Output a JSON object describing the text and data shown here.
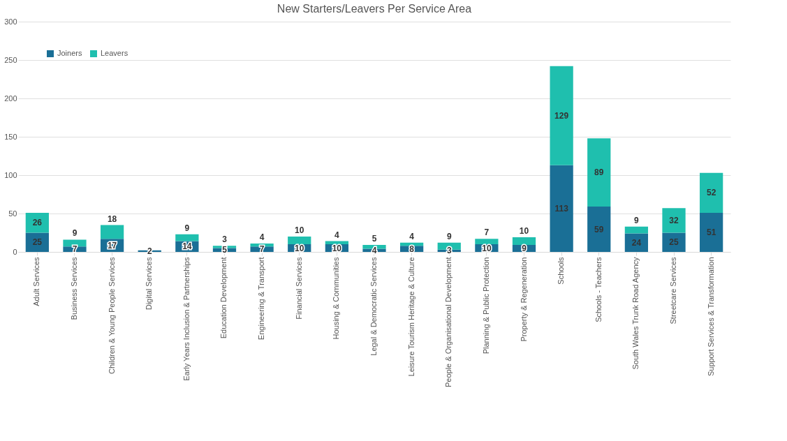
{
  "chart_data": {
    "type": "bar",
    "title": "New Starters/Leavers Per Service Area",
    "categories": [
      "Adult Services",
      "Business Services",
      "Children & Young People Services",
      "Digital Services",
      "Early Years Inclusion & Partnerships",
      "Education Development",
      "Engineering & Transport",
      "Financial Services",
      "Housing & Communities",
      "Legal & Democratic Services",
      "Leisure Tourism Heritage & Culture",
      "People & Organisational Development",
      "Planning & Public Protection",
      "Property & Regeneration",
      "Schools",
      "Schools - Teachers",
      "South Wales Trunk Road Agency",
      "Streetcare Services",
      "Support Services & Transformation"
    ],
    "series": [
      {
        "name": "Joiners",
        "color": "#1a6f96",
        "values": [
          25,
          7,
          17,
          2,
          14,
          5,
          7,
          10,
          10,
          4,
          8,
          3,
          10,
          9,
          113,
          59,
          24,
          25,
          51
        ]
      },
      {
        "name": "Leavers",
        "color": "#1fbfae",
        "values": [
          26,
          9,
          18,
          null,
          9,
          3,
          4,
          10,
          4,
          5,
          4,
          9,
          7,
          10,
          129,
          89,
          9,
          32,
          52
        ]
      }
    ],
    "stacked": true,
    "data_labels": true,
    "ylim": [
      0,
      300
    ],
    "yticks": [
      0,
      50,
      100,
      150,
      200,
      250,
      300
    ],
    "grid": "y",
    "legend": "top left"
  }
}
